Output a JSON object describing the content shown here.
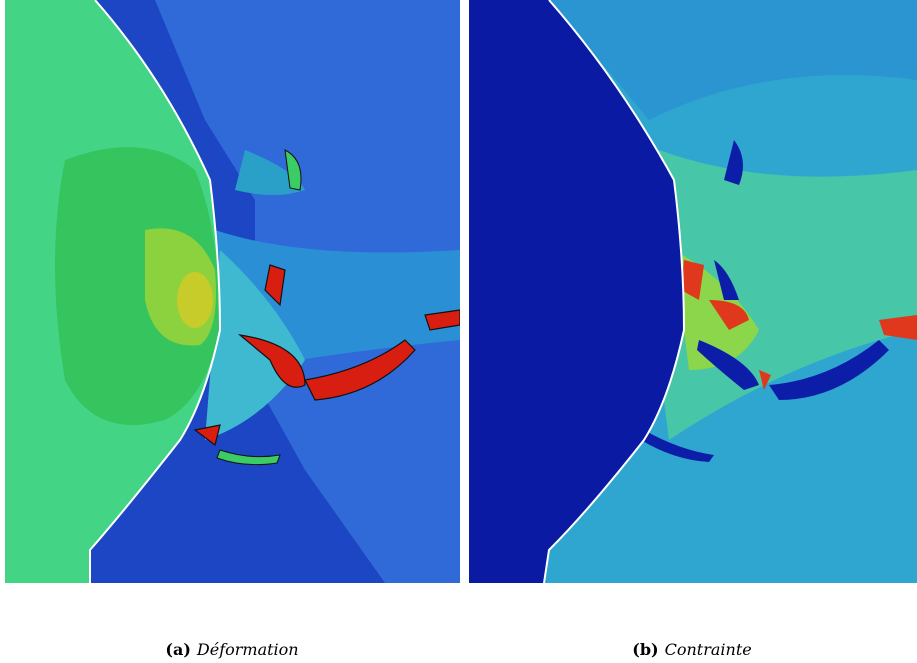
{
  "figure": {
    "panels": [
      {
        "label": "(a)",
        "caption": "Déformation"
      },
      {
        "label": "(b)",
        "caption": "Contrainte"
      }
    ]
  }
}
